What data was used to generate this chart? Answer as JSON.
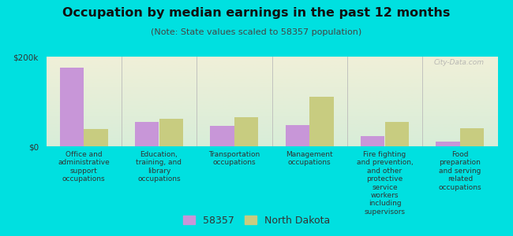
{
  "title": "Occupation by median earnings in the past 12 months",
  "subtitle": "(Note: State values scaled to 58357 population)",
  "background_color": "#00e0e0",
  "categories": [
    "Office and\nadministrative\nsupport\noccupations",
    "Education,\ntraining, and\nlibrary\noccupations",
    "Transportation\noccupations",
    "Management\noccupations",
    "Fire fighting\nand prevention,\nand other\nprotective\nservice\nworkers\nincluding\nsupervisors",
    "Food\npreparation\nand serving\nrelated\noccupations"
  ],
  "values_58357": [
    175000,
    55000,
    45000,
    48000,
    22000,
    10000
  ],
  "values_nd": [
    38000,
    62000,
    65000,
    110000,
    55000,
    40000
  ],
  "color_58357": "#c896d8",
  "color_nd": "#c8cc80",
  "ylim": [
    0,
    200000
  ],
  "yticks": [
    0,
    200000
  ],
  "ytick_labels": [
    "$0",
    "$200k"
  ],
  "legend_58357": "58357",
  "legend_nd": "North Dakota",
  "watermark": "City-Data.com",
  "plot_bg_top": "#f0f0d8",
  "plot_bg_bottom": "#d8edd8"
}
